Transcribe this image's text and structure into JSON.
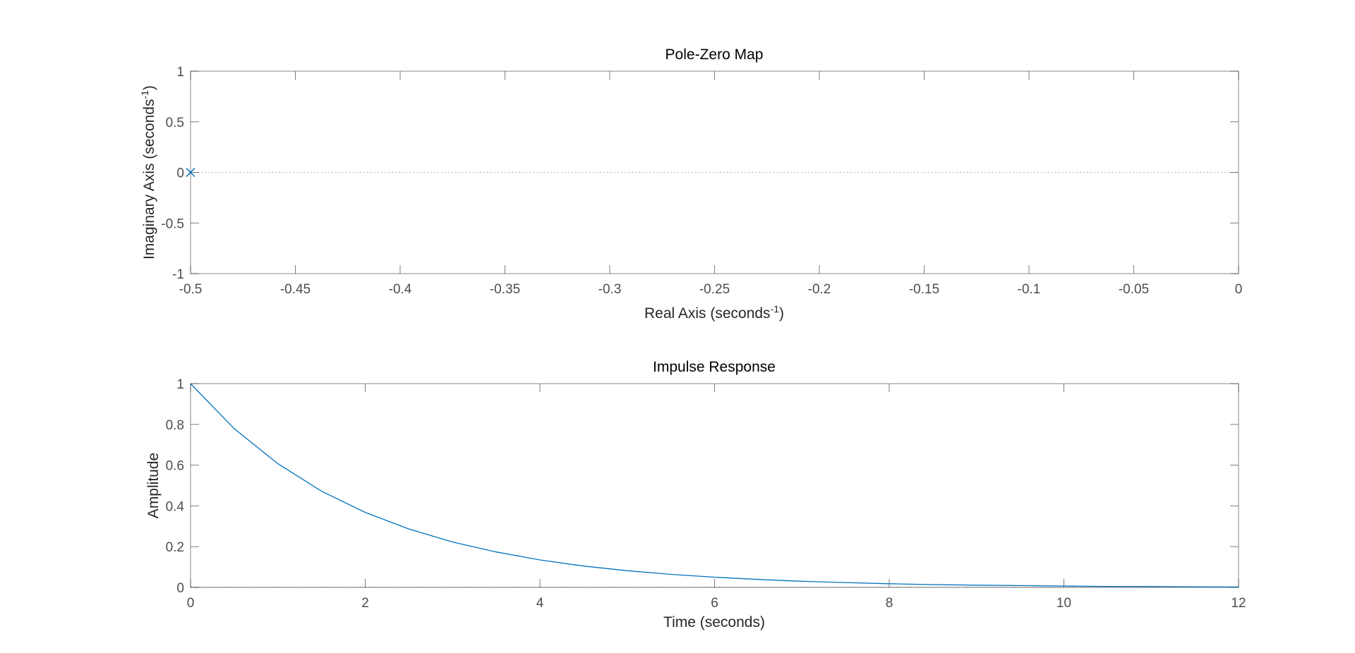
{
  "chart_data": [
    {
      "type": "scatter",
      "title": "Pole-Zero Map",
      "xlabel": {
        "prefix": "Real Axis (seconds",
        "sup": "-1",
        "suffix": ")"
      },
      "ylabel": {
        "prefix": "Imaginary Axis (seconds",
        "sup": "-1",
        "suffix": ")"
      },
      "xlim": [
        -0.5,
        0
      ],
      "ylim": [
        -1,
        1
      ],
      "xticks": [
        -0.5,
        -0.45,
        -0.4,
        -0.35,
        -0.3,
        -0.25,
        -0.2,
        -0.15,
        -0.1,
        -0.05,
        0
      ],
      "xtick_labels": [
        "-0.5",
        "-0.45",
        "-0.4",
        "-0.35",
        "-0.3",
        "-0.25",
        "-0.2",
        "-0.15",
        "-0.1",
        "-0.05",
        "0"
      ],
      "yticks": [
        -1,
        -0.5,
        0,
        0.5,
        1
      ],
      "ytick_labels": [
        "-1",
        "-0.5",
        "0",
        "0.5",
        "1"
      ],
      "grid": false,
      "poles": [
        {
          "re": -0.5,
          "im": 0
        }
      ],
      "zeros": [],
      "reference_line": {
        "y": 0,
        "style": "dotted"
      },
      "marker_color": "#0072BD"
    },
    {
      "type": "line",
      "title": "Impulse Response",
      "xlabel": "Time (seconds)",
      "ylabel": "Amplitude",
      "xlim": [
        0,
        12
      ],
      "ylim": [
        0,
        1
      ],
      "xticks": [
        0,
        2,
        4,
        6,
        8,
        10,
        12
      ],
      "xtick_labels": [
        "0",
        "2",
        "4",
        "6",
        "8",
        "10",
        "12"
      ],
      "yticks": [
        0,
        0.2,
        0.4,
        0.6,
        0.8,
        1
      ],
      "ytick_labels": [
        "0",
        "0.2",
        "0.4",
        "0.6",
        "0.8",
        "1"
      ],
      "grid": false,
      "series": [
        {
          "x": [
            0,
            0.5,
            1,
            1.5,
            2,
            2.5,
            3,
            3.5,
            4,
            4.5,
            5,
            5.5,
            6,
            6.5,
            7,
            7.5,
            8,
            8.5,
            9,
            9.5,
            10,
            10.5,
            11,
            11.5,
            12
          ],
          "values": [
            1,
            0.779,
            0.607,
            0.472,
            0.368,
            0.287,
            0.223,
            0.174,
            0.135,
            0.105,
            0.082,
            0.064,
            0.05,
            0.039,
            0.03,
            0.024,
            0.018,
            0.014,
            0.011,
            0.009,
            0.007,
            0.005,
            0.004,
            0.003,
            0.002
          ],
          "color": "#0072BD"
        }
      ],
      "reference_line": {
        "y": 0,
        "style": "dotted"
      }
    }
  ]
}
